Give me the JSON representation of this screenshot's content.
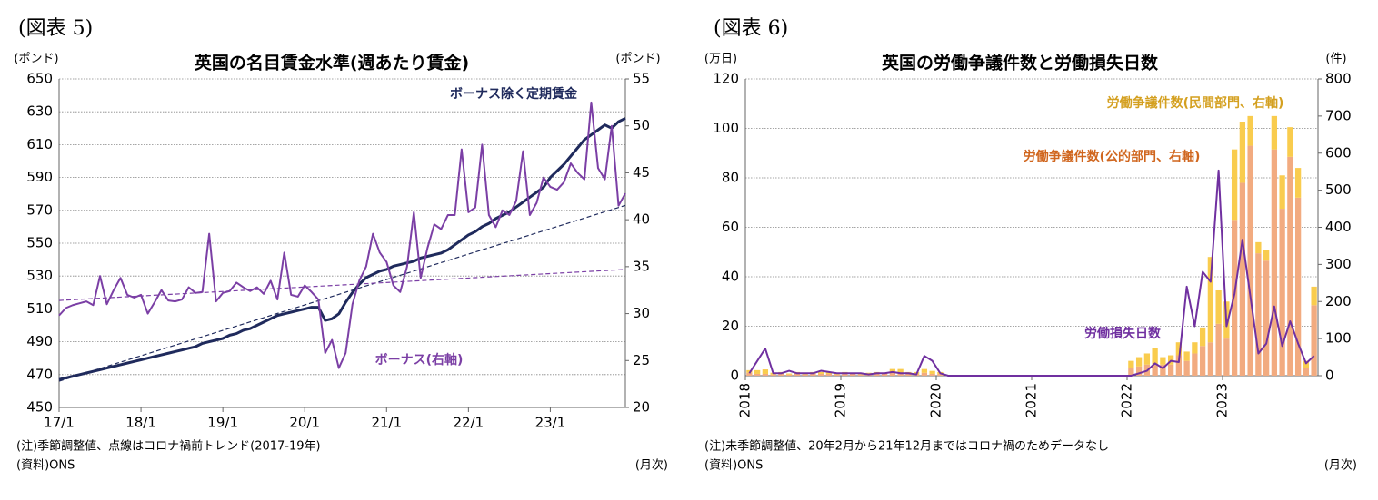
{
  "chart_data": [
    {
      "type": "line",
      "figure_label": "(図表 5)",
      "title": "英国の名目賃金水準(週あたり賃金)",
      "y_unit": "(ポンド)",
      "y2_unit": "(ポンド)",
      "x_unit": "(月次)",
      "notes": [
        "(注)季節調整値、点線はコロナ禍前トレンド(2017-19年)",
        "(資料)ONS"
      ],
      "categories": [
        "17/1",
        null,
        null,
        null,
        null,
        null,
        null,
        null,
        null,
        null,
        null,
        null,
        "18/1",
        null,
        null,
        null,
        null,
        null,
        null,
        null,
        null,
        null,
        null,
        null,
        "19/1",
        null,
        null,
        null,
        null,
        null,
        null,
        null,
        null,
        null,
        null,
        null,
        "20/1",
        null,
        null,
        null,
        null,
        null,
        null,
        null,
        null,
        null,
        null,
        null,
        "21/1",
        null,
        null,
        null,
        null,
        null,
        null,
        null,
        null,
        null,
        null,
        null,
        "22/1",
        null,
        null,
        null,
        null,
        null,
        null,
        null,
        null,
        null,
        null,
        null,
        "23/1",
        null,
        null,
        null,
        null,
        null,
        null,
        null,
        null,
        null,
        null,
        null
      ],
      "ylim": [
        450,
        650
      ],
      "yticks": [
        450,
        470,
        490,
        510,
        530,
        550,
        570,
        590,
        610,
        630,
        650
      ],
      "y2lim": [
        20,
        55
      ],
      "y2ticks": [
        20,
        25,
        30,
        35,
        40,
        45,
        50,
        55
      ],
      "grid": true,
      "series": [
        {
          "name": "ボーナス除く定期賃金",
          "color": "#1f2a5c",
          "label_color": "#1f2a5c",
          "width": 3,
          "values": [
            467,
            468,
            469,
            470,
            471,
            472,
            473,
            474,
            475,
            476,
            477,
            478,
            479,
            480,
            481,
            482,
            483,
            484,
            485,
            486,
            487,
            489,
            490,
            491,
            492,
            494,
            495,
            497,
            498,
            500,
            502,
            504,
            506,
            507,
            508,
            509,
            510,
            511,
            511,
            503,
            504,
            507,
            514,
            520,
            525,
            529,
            531,
            533,
            534,
            536,
            537,
            538,
            539,
            541,
            542,
            543,
            544,
            546,
            549,
            552,
            555,
            557,
            560,
            562,
            565,
            567,
            569,
            572,
            575,
            578,
            581,
            584,
            590,
            594,
            598,
            603,
            608,
            613,
            616,
            619,
            622,
            620,
            624,
            626
          ]
        },
        {
          "name": "ボーナス(右軸)",
          "color": "#7b3fa5",
          "label_color": "#7b3fa5",
          "width": 2,
          "axis": "y2",
          "values": [
            29.8,
            30.6,
            30.9,
            31.1,
            31.3,
            30.9,
            34.0,
            31.0,
            32.5,
            33.8,
            32.0,
            31.7,
            32.0,
            30.0,
            31.2,
            32.5,
            31.4,
            31.3,
            31.5,
            32.8,
            32.2,
            32.3,
            38.5,
            31.3,
            32.2,
            32.4,
            33.3,
            32.8,
            32.4,
            32.8,
            32.1,
            33.5,
            31.5,
            36.5,
            32.0,
            31.8,
            33.0,
            32.3,
            31.5,
            25.8,
            27.2,
            24.2,
            25.8,
            31.0,
            33.5,
            35.0,
            38.5,
            36.5,
            35.5,
            33.0,
            32.3,
            35.0,
            40.8,
            33.8,
            37.0,
            39.5,
            39.0,
            40.5,
            40.5,
            47.5,
            40.8,
            41.3,
            48.0,
            40.5,
            39.2,
            41.0,
            40.5,
            42.0,
            47.3,
            40.5,
            41.8,
            44.5,
            43.5,
            43.2,
            44.0,
            46.0,
            45.0,
            44.3,
            52.5,
            45.5,
            44.3,
            50.0,
            41.5,
            42.8
          ]
        }
      ],
      "trend_lines": [
        {
          "color": "#1f2a5c",
          "from": 466,
          "to": 573
        },
        {
          "color": "#7b3fa5",
          "axis": "y2",
          "from": 31.4,
          "to": 34.7
        }
      ]
    },
    {
      "type": "bar",
      "figure_label": "(図表 6)",
      "title": "英国の労働争議件数と労働損失日数",
      "y_unit": "(万日)",
      "y2_unit": "(件)",
      "x_unit": "(月次)",
      "notes": [
        "(注)未季節調整値、20年2月から21年12月まではコロナ禍のためデータなし",
        "(資料)ONS"
      ],
      "categories": [
        "2018",
        null,
        null,
        null,
        null,
        null,
        null,
        null,
        null,
        null,
        null,
        null,
        "2019",
        null,
        null,
        null,
        null,
        null,
        null,
        null,
        null,
        null,
        null,
        null,
        "2020",
        null,
        null,
        null,
        null,
        null,
        null,
        null,
        null,
        null,
        null,
        null,
        "2021",
        null,
        null,
        null,
        null,
        null,
        null,
        null,
        null,
        null,
        null,
        null,
        "2022",
        null,
        null,
        null,
        null,
        null,
        null,
        null,
        null,
        null,
        null,
        null,
        "2023",
        null,
        null,
        null,
        null,
        null,
        null,
        null,
        null,
        null,
        null,
        null
      ],
      "ylim": [
        0,
        120
      ],
      "yticks": [
        0,
        20,
        40,
        60,
        80,
        100,
        120
      ],
      "y2lim": [
        0,
        800
      ],
      "y2ticks": [
        0,
        100,
        200,
        300,
        400,
        500,
        600,
        700,
        800
      ],
      "grid": true,
      "series": [
        {
          "name": "労働争議件数(公的部門、右軸)",
          "type": "bar",
          "axis": "y2",
          "color": "#f2ab80",
          "label_color": "#d0661e",
          "values": [
            8,
            5,
            5,
            3,
            5,
            3,
            5,
            3,
            5,
            5,
            5,
            3,
            5,
            5,
            3,
            5,
            5,
            5,
            8,
            8,
            5,
            5,
            8,
            5,
            5,
            null,
            null,
            null,
            null,
            null,
            null,
            null,
            null,
            null,
            null,
            null,
            null,
            null,
            null,
            null,
            null,
            null,
            null,
            null,
            null,
            null,
            null,
            null,
            20,
            25,
            30,
            30,
            30,
            30,
            55,
            40,
            60,
            80,
            90,
            140,
            100,
            420,
            520,
            620,
            330,
            310,
            610,
            450,
            590,
            480,
            20,
            190
          ]
        },
        {
          "name": "労働争議件数(民間部門、右軸)",
          "type": "bar",
          "axis": "y2",
          "color": "#f9cc4e",
          "label_color": "#d4a020",
          "values": [
            7,
            10,
            12,
            5,
            5,
            3,
            5,
            5,
            5,
            5,
            5,
            3,
            5,
            3,
            3,
            3,
            5,
            3,
            10,
            10,
            5,
            5,
            10,
            8,
            5,
            null,
            null,
            null,
            null,
            null,
            null,
            null,
            null,
            null,
            null,
            null,
            null,
            null,
            null,
            null,
            null,
            null,
            null,
            null,
            null,
            null,
            null,
            null,
            20,
            25,
            30,
            45,
            20,
            25,
            35,
            25,
            30,
            50,
            230,
            90,
            100,
            190,
            165,
            80,
            30,
            30,
            90,
            90,
            80,
            80,
            20,
            50
          ]
        },
        {
          "name": "労働損失日数",
          "type": "line",
          "color": "#7030a0",
          "label_color": "#7030a0",
          "width": 2,
          "values": [
            1,
            6,
            11,
            1,
            1,
            2,
            1,
            1,
            1,
            2,
            1.5,
            1,
            1,
            1,
            1,
            0.5,
            1,
            1,
            1.5,
            1,
            1,
            0.5,
            8,
            6,
            1,
            0,
            0,
            0,
            0,
            0,
            0,
            0,
            0,
            0,
            0,
            0,
            0,
            0,
            0,
            0,
            0,
            0,
            0,
            0,
            0,
            0,
            0,
            0,
            0,
            1,
            2,
            5,
            3,
            6,
            5.5,
            36,
            20,
            42,
            38,
            83,
            20,
            33,
            55,
            32,
            9,
            13,
            28,
            12,
            22,
            13,
            5,
            8
          ]
        }
      ]
    }
  ]
}
